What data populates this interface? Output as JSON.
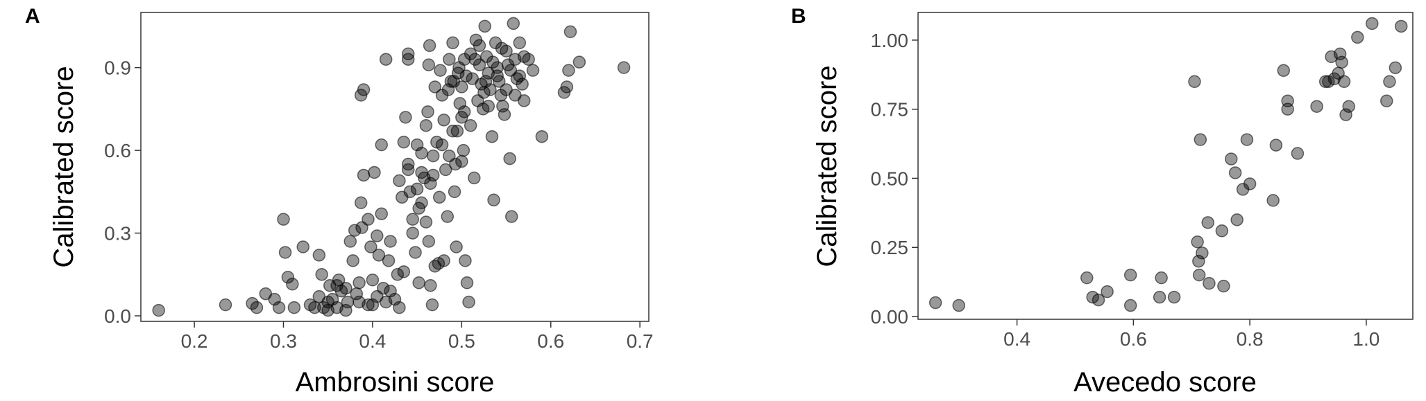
{
  "chart_data": [
    {
      "panel_label": "A",
      "type": "scatter",
      "xlabel": "Ambrosini score",
      "ylabel": "Calibrated score",
      "xlim": [
        0.14,
        0.71
      ],
      "ylim": [
        -0.02,
        1.1
      ],
      "xticks": [
        "0.2",
        "0.3",
        "0.4",
        "0.5",
        "0.6",
        "0.7"
      ],
      "yticks": [
        "0.0",
        "0.3",
        "0.6",
        "0.9"
      ],
      "grid": false,
      "point_color": "#000000",
      "points": [
        [
          0.16,
          0.02
        ],
        [
          0.235,
          0.04
        ],
        [
          0.265,
          0.045
        ],
        [
          0.27,
          0.03
        ],
        [
          0.28,
          0.08
        ],
        [
          0.29,
          0.06
        ],
        [
          0.295,
          0.03
        ],
        [
          0.3,
          0.35
        ],
        [
          0.302,
          0.23
        ],
        [
          0.305,
          0.14
        ],
        [
          0.31,
          0.115
        ],
        [
          0.312,
          0.03
        ],
        [
          0.322,
          0.25
        ],
        [
          0.33,
          0.04
        ],
        [
          0.34,
          0.07
        ],
        [
          0.34,
          0.22
        ],
        [
          0.343,
          0.15
        ],
        [
          0.345,
          0.03
        ],
        [
          0.35,
          0.02
        ],
        [
          0.352,
          0.11
        ],
        [
          0.355,
          0.06
        ],
        [
          0.36,
          0.03
        ],
        [
          0.362,
          0.13
        ],
        [
          0.365,
          0.09
        ],
        [
          0.37,
          0.02
        ],
        [
          0.372,
          0.05
        ],
        [
          0.375,
          0.27
        ],
        [
          0.378,
          0.2
        ],
        [
          0.38,
          0.31
        ],
        [
          0.382,
          0.08
        ],
        [
          0.385,
          0.12
        ],
        [
          0.387,
          0.41
        ],
        [
          0.39,
          0.51
        ],
        [
          0.388,
          0.32
        ],
        [
          0.395,
          0.35
        ],
        [
          0.398,
          0.25
        ],
        [
          0.4,
          0.04
        ],
        [
          0.4,
          0.13
        ],
        [
          0.402,
          0.52
        ],
        [
          0.405,
          0.29
        ],
        [
          0.407,
          0.22
        ],
        [
          0.41,
          0.37
        ],
        [
          0.412,
          0.1
        ],
        [
          0.415,
          0.05
        ],
        [
          0.418,
          0.2
        ],
        [
          0.42,
          0.27
        ],
        [
          0.425,
          0.06
        ],
        [
          0.428,
          0.15
        ],
        [
          0.43,
          0.03
        ],
        [
          0.433,
          0.43
        ],
        [
          0.435,
          0.63
        ],
        [
          0.437,
          0.72
        ],
        [
          0.44,
          0.55
        ],
        [
          0.442,
          0.45
        ],
        [
          0.445,
          0.35
        ],
        [
          0.448,
          0.23
        ],
        [
          0.45,
          0.62
        ],
        [
          0.452,
          0.12
        ],
        [
          0.455,
          0.41
        ],
        [
          0.458,
          0.5
        ],
        [
          0.46,
          0.69
        ],
        [
          0.462,
          0.74
        ],
        [
          0.463,
          0.27
        ],
        [
          0.465,
          0.11
        ],
        [
          0.467,
          0.04
        ],
        [
          0.468,
          0.58
        ],
        [
          0.47,
          0.83
        ],
        [
          0.472,
          0.63
        ],
        [
          0.474,
          0.19
        ],
        [
          0.476,
          0.89
        ],
        [
          0.478,
          0.8
        ],
        [
          0.48,
          0.71
        ],
        [
          0.482,
          0.53
        ],
        [
          0.484,
          0.36
        ],
        [
          0.486,
          0.93
        ],
        [
          0.488,
          0.85
        ],
        [
          0.49,
          0.67
        ],
        [
          0.492,
          0.45
        ],
        [
          0.494,
          0.25
        ],
        [
          0.496,
          0.88
        ],
        [
          0.498,
          0.77
        ],
        [
          0.5,
          0.83
        ],
        [
          0.502,
          0.6
        ],
        [
          0.504,
          0.2
        ],
        [
          0.506,
          0.12
        ],
        [
          0.508,
          0.05
        ],
        [
          0.51,
          0.95
        ],
        [
          0.512,
          0.86
        ],
        [
          0.514,
          0.5
        ],
        [
          0.516,
          1.0
        ],
        [
          0.518,
          0.78
        ],
        [
          0.52,
          0.91
        ],
        [
          0.522,
          0.84
        ],
        [
          0.524,
          0.75
        ],
        [
          0.526,
          1.05
        ],
        [
          0.528,
          0.94
        ],
        [
          0.53,
          0.88
        ],
        [
          0.532,
          0.82
        ],
        [
          0.534,
          0.65
        ],
        [
          0.536,
          0.42
        ],
        [
          0.538,
          0.99
        ],
        [
          0.54,
          0.9
        ],
        [
          0.542,
          0.85
        ],
        [
          0.544,
          0.8
        ],
        [
          0.546,
          0.76
        ],
        [
          0.548,
          0.73
        ],
        [
          0.55,
          0.96
        ],
        [
          0.552,
          0.91
        ],
        [
          0.554,
          0.57
        ],
        [
          0.556,
          0.36
        ],
        [
          0.558,
          1.06
        ],
        [
          0.56,
          0.93
        ],
        [
          0.562,
          0.86
        ],
        [
          0.565,
          0.99
        ],
        [
          0.568,
          0.84
        ],
        [
          0.57,
          0.78
        ],
        [
          0.575,
          0.93
        ],
        [
          0.58,
          0.89
        ],
        [
          0.59,
          0.65
        ],
        [
          0.615,
          0.81
        ],
        [
          0.618,
          0.83
        ],
        [
          0.62,
          0.89
        ],
        [
          0.622,
          1.03
        ],
        [
          0.632,
          0.92
        ],
        [
          0.682,
          0.9
        ],
        [
          0.39,
          0.82
        ],
        [
          0.387,
          0.8
        ],
        [
          0.415,
          0.93
        ],
        [
          0.44,
          0.95
        ],
        [
          0.44,
          0.93
        ],
        [
          0.463,
          0.91
        ],
        [
          0.464,
          0.98
        ],
        [
          0.49,
          0.99
        ],
        [
          0.503,
          0.74
        ],
        [
          0.5,
          0.56
        ],
        [
          0.475,
          0.43
        ],
        [
          0.46,
          0.34
        ],
        [
          0.45,
          0.46
        ],
        [
          0.435,
          0.16
        ],
        [
          0.42,
          0.09
        ],
        [
          0.405,
          0.07
        ],
        [
          0.395,
          0.04
        ],
        [
          0.385,
          0.05
        ],
        [
          0.37,
          0.1
        ],
        [
          0.36,
          0.11
        ],
        [
          0.35,
          0.05
        ],
        [
          0.335,
          0.03
        ],
        [
          0.41,
          0.62
        ],
        [
          0.43,
          0.49
        ],
        [
          0.445,
          0.3
        ],
        [
          0.455,
          0.52
        ],
        [
          0.47,
          0.18
        ],
        [
          0.48,
          0.2
        ],
        [
          0.495,
          0.67
        ],
        [
          0.5,
          0.72
        ],
        [
          0.505,
          0.87
        ],
        [
          0.515,
          0.93
        ],
        [
          0.52,
          0.98
        ],
        [
          0.525,
          0.81
        ],
        [
          0.53,
          0.76
        ],
        [
          0.535,
          0.92
        ],
        [
          0.54,
          0.87
        ],
        [
          0.545,
          0.97
        ],
        [
          0.55,
          0.82
        ],
        [
          0.555,
          0.89
        ],
        [
          0.56,
          0.8
        ],
        [
          0.565,
          0.87
        ],
        [
          0.57,
          0.94
        ],
        [
          0.478,
          0.62
        ],
        [
          0.486,
          0.58
        ],
        [
          0.493,
          0.55
        ],
        [
          0.465,
          0.48
        ],
        [
          0.452,
          0.39
        ],
        [
          0.44,
          0.53
        ],
        [
          0.455,
          0.59
        ],
        [
          0.468,
          0.51
        ],
        [
          0.51,
          0.69
        ],
        [
          0.503,
          0.93
        ],
        [
          0.497,
          0.9
        ],
        [
          0.491,
          0.85
        ],
        [
          0.485,
          0.82
        ],
        [
          0.527,
          0.85
        ]
      ]
    },
    {
      "panel_label": "B",
      "type": "scatter",
      "xlabel": "Avecedo score",
      "ylabel": "Calibrated score",
      "xlim": [
        0.23,
        1.08
      ],
      "ylim": [
        -0.01,
        1.1
      ],
      "xticks": [
        "0.4",
        "0.6",
        "0.8",
        "1.0"
      ],
      "yticks": [
        "0.00",
        "0.25",
        "0.50",
        "0.75",
        "1.00"
      ],
      "grid": false,
      "point_color": "#000000",
      "points": [
        [
          0.26,
          0.05
        ],
        [
          0.3,
          0.04
        ],
        [
          0.52,
          0.14
        ],
        [
          0.53,
          0.07
        ],
        [
          0.54,
          0.06
        ],
        [
          0.555,
          0.09
        ],
        [
          0.595,
          0.15
        ],
        [
          0.595,
          0.04
        ],
        [
          0.645,
          0.07
        ],
        [
          0.648,
          0.14
        ],
        [
          0.67,
          0.07
        ],
        [
          0.705,
          0.85
        ],
        [
          0.71,
          0.27
        ],
        [
          0.712,
          0.2
        ],
        [
          0.713,
          0.15
        ],
        [
          0.715,
          0.64
        ],
        [
          0.718,
          0.23
        ],
        [
          0.728,
          0.34
        ],
        [
          0.73,
          0.12
        ],
        [
          0.752,
          0.31
        ],
        [
          0.755,
          0.11
        ],
        [
          0.768,
          0.57
        ],
        [
          0.775,
          0.52
        ],
        [
          0.778,
          0.35
        ],
        [
          0.788,
          0.46
        ],
        [
          0.795,
          0.64
        ],
        [
          0.8,
          0.48
        ],
        [
          0.84,
          0.42
        ],
        [
          0.845,
          0.62
        ],
        [
          0.858,
          0.89
        ],
        [
          0.865,
          0.78
        ],
        [
          0.865,
          0.75
        ],
        [
          0.882,
          0.59
        ],
        [
          0.915,
          0.76
        ],
        [
          0.93,
          0.85
        ],
        [
          0.935,
          0.85
        ],
        [
          0.94,
          0.94
        ],
        [
          0.945,
          0.86
        ],
        [
          0.952,
          0.88
        ],
        [
          0.955,
          0.95
        ],
        [
          0.958,
          0.92
        ],
        [
          0.962,
          0.85
        ],
        [
          0.965,
          0.73
        ],
        [
          0.97,
          0.76
        ],
        [
          0.985,
          1.01
        ],
        [
          1.01,
          1.06
        ],
        [
          1.035,
          0.78
        ],
        [
          1.04,
          0.85
        ],
        [
          1.05,
          0.9
        ],
        [
          1.06,
          1.05
        ]
      ]
    }
  ]
}
